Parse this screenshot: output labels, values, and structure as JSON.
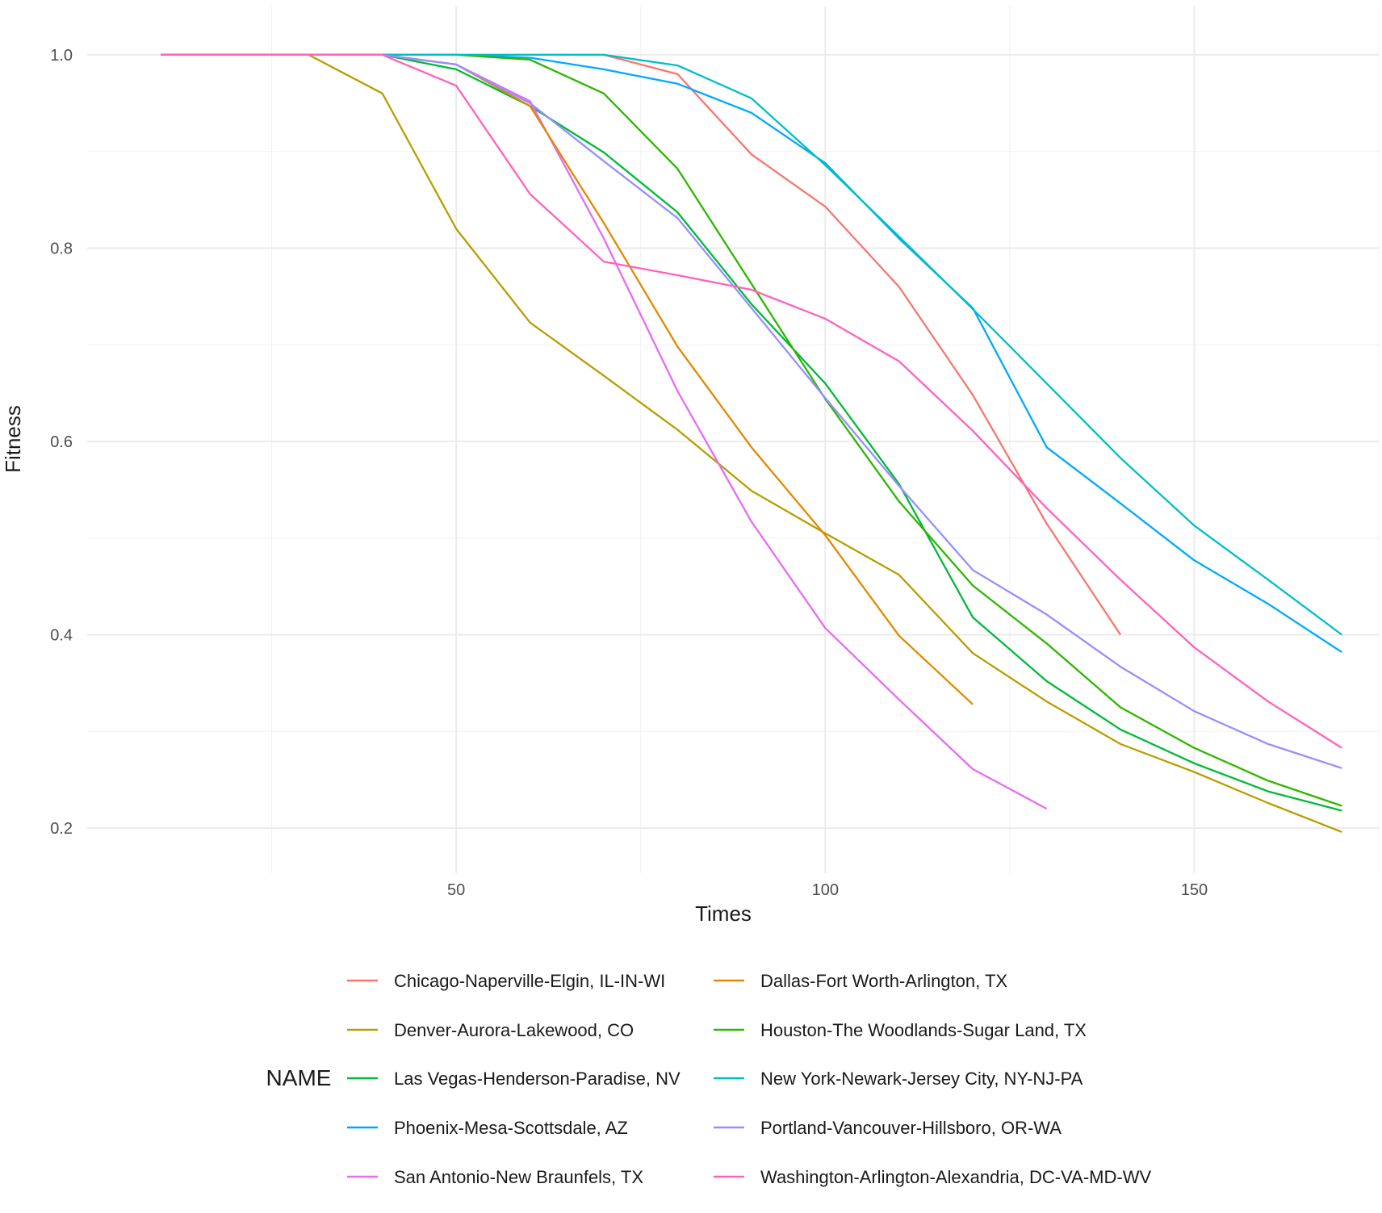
{
  "chart_data": {
    "type": "line",
    "title": "",
    "xlabel": "Times",
    "ylabel": "Fitness",
    "xlim": [
      0,
      175
    ],
    "ylim": [
      0.16,
      1.04
    ],
    "x_ticks": [
      50,
      100,
      150
    ],
    "x_tick_labels": [
      "50",
      "100",
      "150"
    ],
    "y_ticks": [
      0.2,
      0.4,
      0.6,
      0.8,
      1.0
    ],
    "y_tick_labels": [
      "0.2",
      "0.4",
      "0.6",
      "0.8",
      "1.0"
    ],
    "grid": true,
    "legend_title": "NAME",
    "legend_position": "bottom",
    "series": [
      {
        "name": "Chicago-Naperville-Elgin, IL-IN-WI",
        "color": "#F8766D",
        "x": [
          10,
          20,
          30,
          40,
          50,
          60,
          70,
          80,
          90,
          100,
          110,
          120,
          130,
          140
        ],
        "values": [
          1.0,
          1.0,
          1.0,
          1.0,
          1.0,
          1.0,
          1.0,
          0.98,
          0.897,
          0.843,
          0.76,
          0.648,
          0.515,
          0.4
        ]
      },
      {
        "name": "Denver-Aurora-Lakewood, CO",
        "color": "#B79F00",
        "x": [
          10,
          20,
          30,
          40,
          50,
          60,
          70,
          80,
          90,
          100,
          110,
          120,
          130,
          140,
          150,
          160,
          170
        ],
        "values": [
          1.0,
          1.0,
          1.0,
          0.96,
          0.82,
          0.723,
          0.668,
          0.612,
          0.549,
          0.505,
          0.462,
          0.381,
          0.331,
          0.287,
          0.258,
          0.226,
          0.196
        ]
      },
      {
        "name": "Las Vegas-Henderson-Paradise, NV",
        "color": "#00BA38",
        "x": [
          10,
          20,
          30,
          40,
          50,
          60,
          70,
          80,
          90,
          100,
          110,
          120,
          130,
          140,
          150,
          160,
          170
        ],
        "values": [
          1.0,
          1.0,
          1.0,
          1.0,
          0.985,
          0.947,
          0.899,
          0.837,
          0.742,
          0.66,
          0.556,
          0.418,
          0.352,
          0.302,
          0.267,
          0.238,
          0.218
        ]
      },
      {
        "name": "Phoenix-Mesa-Scottsdale, AZ",
        "color": "#00A9FF",
        "x": [
          10,
          20,
          30,
          40,
          50,
          60,
          70,
          80,
          90,
          100,
          110,
          120,
          130,
          140,
          150,
          160,
          170
        ],
        "values": [
          1.0,
          1.0,
          1.0,
          1.0,
          1.0,
          0.997,
          0.985,
          0.97,
          0.94,
          0.888,
          0.81,
          0.738,
          0.594,
          0.536,
          0.477,
          0.432,
          0.382
        ]
      },
      {
        "name": "San Antonio-New Braunfels, TX",
        "color": "#E76BF3",
        "x": [
          10,
          20,
          30,
          40,
          50,
          60,
          70,
          80,
          90,
          100,
          110,
          120,
          130
        ],
        "values": [
          1.0,
          1.0,
          1.0,
          1.0,
          0.99,
          0.952,
          0.81,
          0.652,
          0.517,
          0.407,
          0.333,
          0.261,
          0.22
        ]
      },
      {
        "name": "Dallas-Fort Worth-Arlington, TX",
        "color": "#E38900",
        "x": [
          10,
          20,
          30,
          40,
          50,
          60,
          70,
          80,
          90,
          100,
          110,
          120
        ],
        "values": [
          1.0,
          1.0,
          1.0,
          1.0,
          0.99,
          0.947,
          0.826,
          0.698,
          0.594,
          0.503,
          0.399,
          0.328
        ]
      },
      {
        "name": "Houston-The Woodlands-Sugar Land, TX",
        "color": "#2FB600",
        "x": [
          10,
          20,
          30,
          40,
          50,
          60,
          70,
          80,
          90,
          100,
          110,
          120,
          130,
          140,
          150,
          160,
          170
        ],
        "values": [
          1.0,
          1.0,
          1.0,
          1.0,
          1.0,
          0.995,
          0.96,
          0.882,
          0.763,
          0.644,
          0.538,
          0.451,
          0.391,
          0.325,
          0.283,
          0.249,
          0.223
        ]
      },
      {
        "name": "New York-Newark-Jersey City, NY-NJ-PA",
        "color": "#00BFC4",
        "x": [
          10,
          20,
          30,
          40,
          50,
          60,
          70,
          80,
          90,
          100,
          110,
          120,
          130,
          140,
          150,
          160,
          170
        ],
        "values": [
          1.0,
          1.0,
          1.0,
          1.0,
          1.0,
          1.0,
          1.0,
          0.989,
          0.955,
          0.886,
          0.812,
          0.737,
          0.66,
          0.583,
          0.513,
          0.457,
          0.4
        ]
      },
      {
        "name": "Portland-Vancouver-Hillsboro, OR-WA",
        "color": "#9590FF",
        "x": [
          10,
          20,
          30,
          40,
          50,
          60,
          70,
          80,
          90,
          100,
          110,
          120,
          130,
          140,
          150,
          160,
          170
        ],
        "values": [
          1.0,
          1.0,
          1.0,
          1.0,
          0.99,
          0.95,
          0.89,
          0.831,
          0.738,
          0.645,
          0.554,
          0.467,
          0.421,
          0.367,
          0.321,
          0.287,
          0.262
        ]
      },
      {
        "name": "Washington-Arlington-Alexandria, DC-VA-MD-WV",
        "color": "#FF62BC",
        "x": [
          10,
          20,
          30,
          40,
          50,
          60,
          70,
          80,
          90,
          100,
          110,
          120,
          130,
          140,
          150,
          160,
          170
        ],
        "values": [
          1.0,
          1.0,
          1.0,
          1.0,
          0.968,
          0.856,
          0.786,
          0.772,
          0.757,
          0.727,
          0.683,
          0.611,
          0.531,
          0.457,
          0.387,
          0.331,
          0.283
        ]
      }
    ]
  }
}
